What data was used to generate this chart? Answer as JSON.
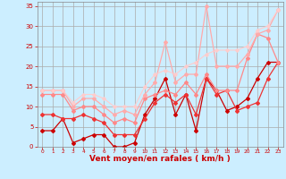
{
  "background_color": "#cceeff",
  "grid_color": "#aaaaaa",
  "xlabel": "Vent moyen/en rafales ( km/h )",
  "xlabel_color": "#cc0000",
  "xlabel_fontsize": 6.5,
  "tick_label_color": "#cc0000",
  "xlim": [
    -0.5,
    23.5
  ],
  "ylim": [
    0,
    36
  ],
  "yticks": [
    0,
    5,
    10,
    15,
    20,
    25,
    30,
    35
  ],
  "xticks": [
    0,
    1,
    2,
    3,
    4,
    5,
    6,
    7,
    8,
    9,
    10,
    11,
    12,
    13,
    14,
    15,
    16,
    17,
    18,
    19,
    20,
    21,
    22,
    23
  ],
  "lines": [
    {
      "x": [
        0,
        1,
        2,
        3,
        4,
        5,
        6,
        7,
        8,
        9,
        10,
        11,
        12,
        13,
        14,
        15,
        16,
        17,
        18,
        19,
        20,
        21,
        22,
        23
      ],
      "y": [
        4,
        4,
        7,
        1,
        2,
        3,
        3,
        0,
        0,
        1,
        8,
        12,
        17,
        8,
        13,
        4,
        17,
        14,
        9,
        10,
        12,
        17,
        21,
        21
      ],
      "color": "#cc0000",
      "lw": 0.9,
      "marker": "D",
      "ms": 2.0
    },
    {
      "x": [
        0,
        1,
        2,
        3,
        4,
        5,
        6,
        7,
        8,
        9,
        10,
        11,
        12,
        13,
        14,
        15,
        16,
        17,
        18,
        19,
        20,
        21,
        22,
        23
      ],
      "y": [
        8,
        8,
        7,
        7,
        8,
        7,
        6,
        3,
        3,
        3,
        7,
        11,
        13,
        11,
        13,
        8,
        17,
        13,
        14,
        9,
        10,
        11,
        17,
        21
      ],
      "color": "#ee3333",
      "lw": 0.9,
      "marker": "D",
      "ms": 2.0
    },
    {
      "x": [
        0,
        1,
        2,
        3,
        4,
        5,
        6,
        7,
        8,
        9,
        10,
        11,
        12,
        13,
        14,
        15,
        16,
        17,
        18,
        19,
        20,
        21,
        22,
        23
      ],
      "y": [
        13,
        13,
        13,
        9,
        10,
        10,
        8,
        6,
        7,
        6,
        12,
        13,
        14,
        13,
        16,
        13,
        18,
        14,
        14,
        14,
        22,
        28,
        27,
        21
      ],
      "color": "#ff8888",
      "lw": 0.9,
      "marker": "D",
      "ms": 2.0
    },
    {
      "x": [
        0,
        1,
        2,
        3,
        4,
        5,
        6,
        7,
        8,
        9,
        10,
        11,
        12,
        13,
        14,
        15,
        16,
        17,
        18,
        19,
        20,
        21,
        22,
        23
      ],
      "y": [
        14,
        14,
        14,
        10,
        12,
        12,
        10,
        8,
        9,
        8,
        13,
        16,
        26,
        16,
        18,
        18,
        35,
        20,
        20,
        20,
        23,
        28,
        29,
        34
      ],
      "color": "#ffaaaa",
      "lw": 0.9,
      "marker": "D",
      "ms": 2.0
    },
    {
      "x": [
        0,
        1,
        2,
        3,
        4,
        5,
        6,
        7,
        8,
        9,
        10,
        11,
        12,
        13,
        14,
        15,
        16,
        17,
        18,
        19,
        20,
        21,
        22,
        23
      ],
      "y": [
        14,
        14,
        14,
        11,
        13,
        13,
        12,
        10,
        10,
        10,
        15,
        18,
        19,
        18,
        20,
        21,
        23,
        24,
        24,
        24,
        25,
        29,
        30,
        34
      ],
      "color": "#ffcccc",
      "lw": 0.8,
      "marker": "D",
      "ms": 1.8
    }
  ]
}
